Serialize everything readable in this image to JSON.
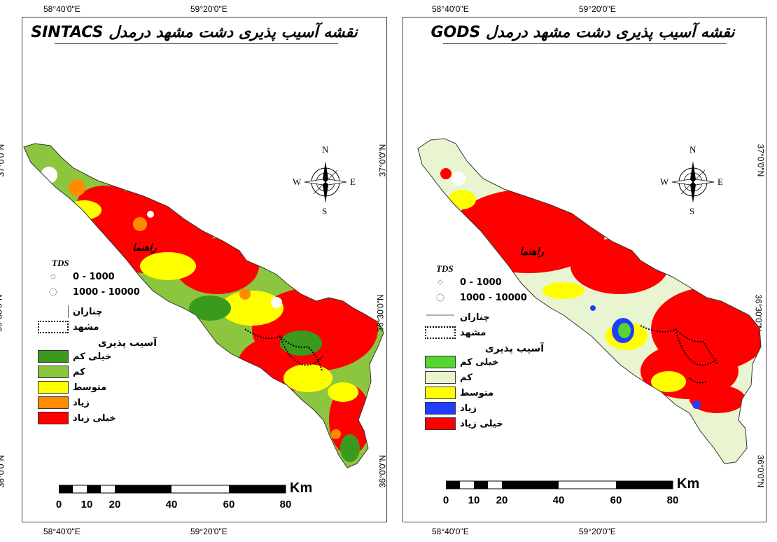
{
  "maps": [
    {
      "title": "نقشه آسیب پذیری دشت مشهد درمدل SINTACS",
      "colors": {
        "very_low": "#3a9a1e",
        "low": "#8cc63f",
        "medium": "#ffff00",
        "high": "#ff8c00",
        "very_high": "#ff0000"
      }
    },
    {
      "title": "نقشه آسیب پذیری دشت مشهد درمدل GODS",
      "colors": {
        "very_low": "#55d432",
        "low": "#e8f5d0",
        "medium": "#ffff00",
        "high": "#1f3fff",
        "very_high": "#ff0000"
      }
    }
  ],
  "axes": {
    "top_ticks": [
      "58°40'0\"E",
      "59°20'0\"E"
    ],
    "bottom_ticks": [
      "58°40'0\"E",
      "59°20'0\"E"
    ],
    "left_ticks": [
      "37°0'0\"N",
      "36°30'0\"N",
      "36°0'0\"N"
    ],
    "right_ticks": [
      "37°0'0\"N",
      "36°30'0\"N",
      "36°0'0\"N"
    ]
  },
  "compass": {
    "n": "N",
    "s": "S",
    "e": "E",
    "w": "W",
    "icon": "north-arrow-compass-rose-icon"
  },
  "legend": {
    "heading": "راهنما",
    "tds_label": "TDS",
    "tds_class_1": "0 - 1000",
    "tds_class_2": "1000 - 10000",
    "chenaran": "چناران",
    "mashhad": "مشهد",
    "vulnerability_heading": "آسیب پذیری",
    "very_low": "خیلی کم",
    "low": "کم",
    "medium": "متوسط",
    "high": "زیاد",
    "very_high": "خیلی زیاد"
  },
  "scale_bar": {
    "unit": "Km",
    "labels": [
      "0",
      "10",
      "20",
      "40",
      "60",
      "80"
    ]
  }
}
